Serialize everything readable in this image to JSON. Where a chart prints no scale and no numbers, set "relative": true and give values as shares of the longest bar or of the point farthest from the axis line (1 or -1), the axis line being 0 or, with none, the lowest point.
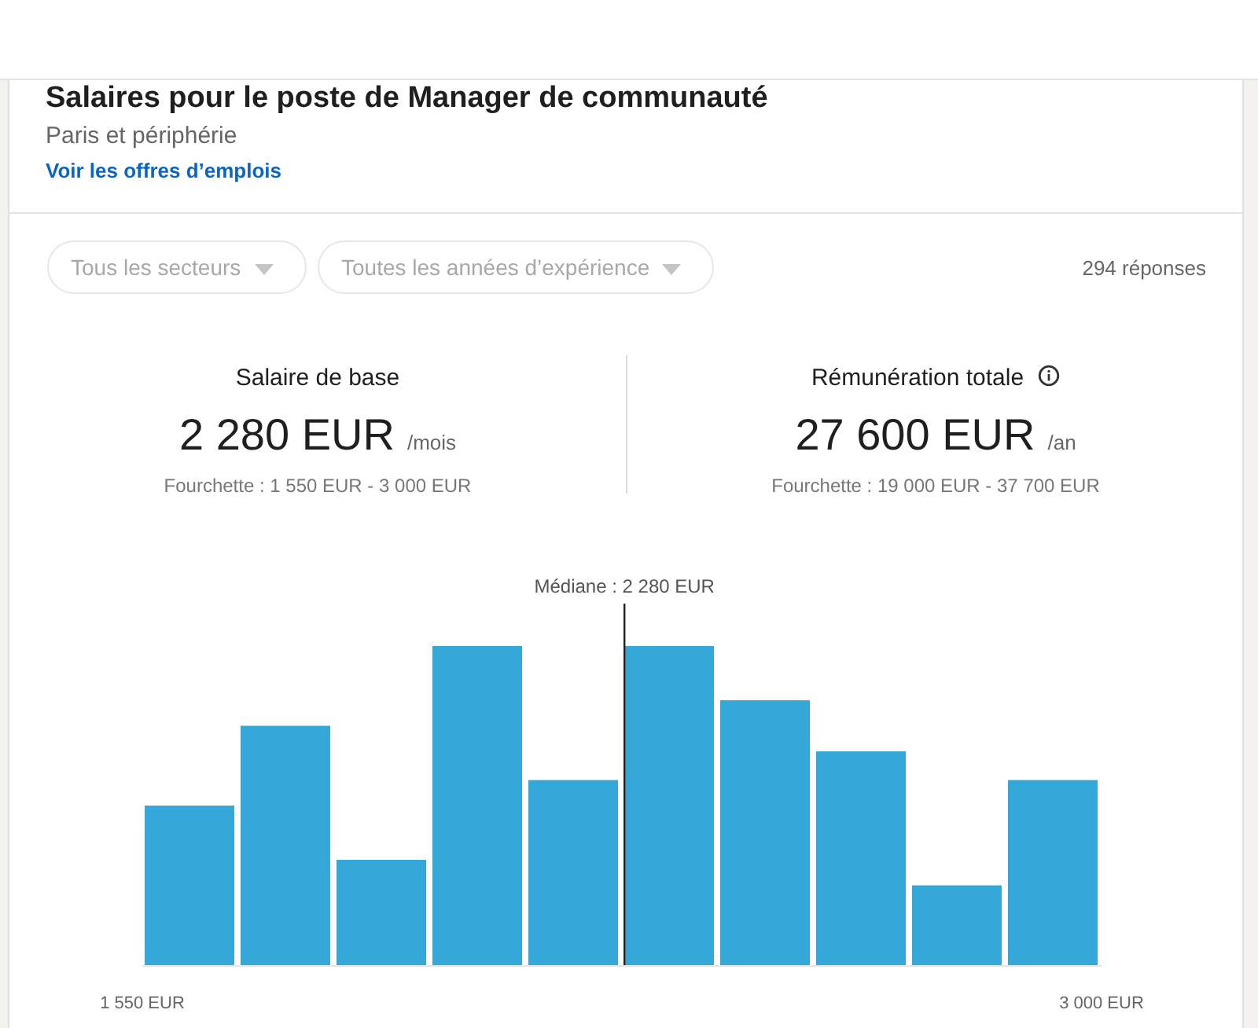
{
  "chart_data": {
    "type": "bar",
    "title": "Salaires pour le poste de Manager de communauté",
    "subtitle": "Paris et périphérie",
    "x": [
      1622.5,
      1767.5,
      1912.5,
      2057.5,
      2202.5,
      2347.5,
      2492.5,
      2637.5,
      2782.5,
      2927.5
    ],
    "values": [
      0.5,
      0.75,
      0.33,
      1,
      0.58,
      1,
      0.83,
      0.67,
      0.25,
      0.58
    ],
    "relative": true,
    "color": "#35a8da",
    "xlim": [
      1550,
      3000
    ],
    "xticks": [
      {
        "value": 1550,
        "label": "1 550 EUR"
      },
      {
        "value": 3000,
        "label": "3 000 EUR"
      }
    ],
    "ref_lines": [
      {
        "axis": "x",
        "value": 2280,
        "label": "Médiane : 2 280 EUR",
        "color": "#222222"
      }
    ],
    "annotations": [
      "Voir les offres d’emplois",
      "Tous les secteurs",
      "Toutes les années d’expérience",
      "294 réponses",
      "Salaire de base",
      "2 280 EUR",
      "/mois",
      "Fourchette : 1 550 EUR - 3 000 EUR",
      "Rémunération totale",
      "27 600 EUR",
      "/an",
      "Fourchette : 19 000 EUR - 37 700 EUR"
    ]
  }
}
